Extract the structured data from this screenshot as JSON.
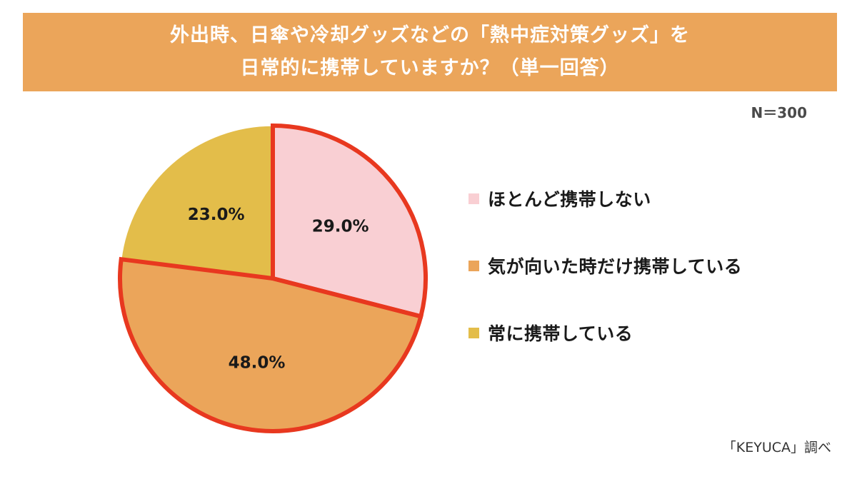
{
  "title_lines": [
    "外出時、日傘や冷却グッズなどの「熱中症対策グッズ」を",
    "日常的に携帯していますか？（単一回答）"
  ],
  "sample_size": "N＝300",
  "source": "「KEYUCA」調べ",
  "chart_data": {
    "type": "pie",
    "title": "外出時、日傘や冷却グッズなどの「熱中症対策グッズ」を日常的に携帯していますか？（単一回答）",
    "start_angle_deg": 0,
    "direction": "clockwise",
    "highlight_outline": {
      "color": "#e8381f",
      "slices": [
        "ほとんど携帯しない",
        "気が向いた時だけ携帯している"
      ]
    },
    "legend_placement": "right",
    "slices": [
      {
        "label": "ほとんど携帯しない",
        "value": 29.0,
        "display": "29.0%",
        "color": "#f9cfd3"
      },
      {
        "label": "気が向いた時だけ携帯している",
        "value": 48.0,
        "display": "48.0%",
        "color": "#eba55a"
      },
      {
        "label": "常に携帯している",
        "value": 23.0,
        "display": "23.0%",
        "color": "#e3bd4a"
      }
    ]
  }
}
